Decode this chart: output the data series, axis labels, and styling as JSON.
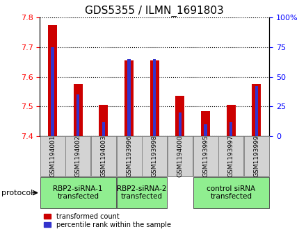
{
  "title": "GDS5355 / ILMN_1691803",
  "samples": [
    "GSM1194001",
    "GSM1194002",
    "GSM1194003",
    "GSM1193996",
    "GSM1193998",
    "GSM1194000",
    "GSM1193995",
    "GSM1193997",
    "GSM1193999"
  ],
  "red_values": [
    7.775,
    7.575,
    7.505,
    7.655,
    7.655,
    7.535,
    7.485,
    7.505,
    7.575
  ],
  "blue_values": [
    75,
    35,
    12,
    65,
    65,
    20,
    10,
    12,
    42
  ],
  "ylim": [
    7.4,
    7.8
  ],
  "y2lim": [
    0,
    100
  ],
  "yticks": [
    7.4,
    7.5,
    7.6,
    7.7,
    7.8
  ],
  "y2ticks": [
    0,
    25,
    50,
    75,
    100
  ],
  "groups": [
    {
      "label": "RBP2-siRNA-1\ntransfected",
      "start": 0,
      "end": 3,
      "color": "#90ee90"
    },
    {
      "label": "RBP2-siRNA-2\ntransfected",
      "start": 3,
      "end": 5,
      "color": "#90ee90"
    },
    {
      "label": "control siRNA\ntransfected",
      "start": 6,
      "end": 9,
      "color": "#90ee90"
    }
  ],
  "protocol_label": "protocol",
  "legend_red": "transformed count",
  "legend_blue": "percentile rank within the sample",
  "red_color": "#cc0000",
  "blue_color": "#3333cc",
  "sample_box_color": "#d3d3d3",
  "red_bar_width": 0.35,
  "blue_bar_width": 0.12,
  "title_fontsize": 11,
  "tick_fontsize": 8,
  "sample_fontsize": 6.5,
  "group_fontsize": 7.5
}
